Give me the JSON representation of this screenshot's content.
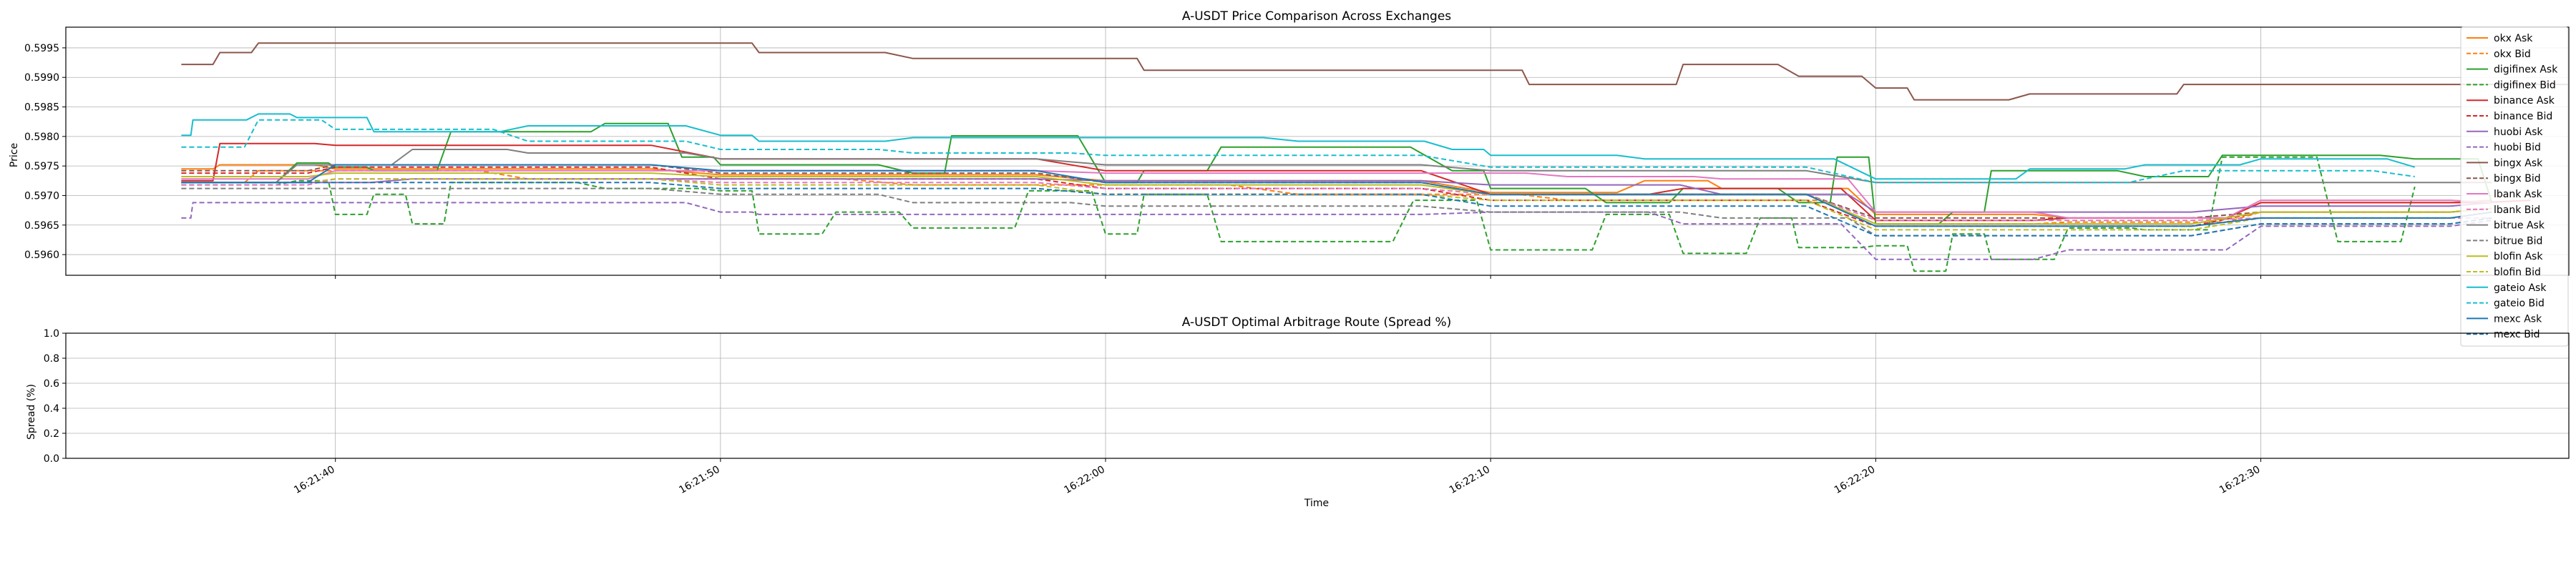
{
  "figure": {
    "xlabel": "Time",
    "x_ticks": [
      "16:21:40",
      "16:21:50",
      "16:22:00",
      "16:22:10",
      "16:22:20",
      "16:22:30"
    ]
  },
  "chart_data": [
    {
      "type": "line",
      "title": "A-USDT Price Comparison Across Exchanges",
      "ylabel": "Price",
      "xlabel": "",
      "xlim": [
        "16:21:33",
        "16:22:38"
      ],
      "ylim": [
        0.59565,
        0.59985
      ],
      "y_ticks": [
        "0.5960",
        "0.5965",
        "0.5970",
        "0.5975",
        "0.5980",
        "0.5985",
        "0.5990",
        "0.5995"
      ],
      "grid": true,
      "legend": "right",
      "series": [
        {
          "name": "okx Ask",
          "color": "#ff7f0e",
          "dash": false,
          "x": [
            "16:21:36",
            "16:21:37",
            "16:21:40",
            "16:21:50",
            "16:22:00",
            "16:22:10",
            "16:22:14",
            "16:22:16",
            "16:22:20",
            "16:22:25",
            "16:22:30",
            "16:22:36"
          ],
          "values": [
            0.59745,
            0.59752,
            0.59745,
            0.59735,
            0.59725,
            0.59705,
            0.59725,
            0.59712,
            0.59668,
            0.59662,
            0.59688,
            0.59692
          ]
        },
        {
          "name": "okx Bid",
          "color": "#ff7f0e",
          "dash": true,
          "x": [
            "16:21:36",
            "16:21:38",
            "16:21:45",
            "16:21:55",
            "16:22:05",
            "16:22:12",
            "16:22:20",
            "16:22:25",
            "16:22:30",
            "16:22:36"
          ],
          "values": [
            0.59722,
            0.59742,
            0.59728,
            0.59718,
            0.59702,
            0.59692,
            0.59652,
            0.59655,
            0.59672,
            0.59678
          ]
        },
        {
          "name": "digifinex Ask",
          "color": "#2ca02c",
          "dash": false,
          "x": [
            "16:21:36",
            "16:21:39",
            "16:21:40",
            "16:21:41",
            "16:21:43",
            "16:21:45",
            "16:21:47",
            "16:21:49",
            "16:21:50",
            "16:21:55",
            "16:21:56",
            "16:22:00",
            "16:22:01",
            "16:22:03",
            "16:22:09",
            "16:22:10",
            "16:22:13",
            "16:22:15",
            "16:22:18",
            "16:22:19",
            "16:22:20",
            "16:22:22",
            "16:22:23",
            "16:22:27",
            "16:22:29",
            "16:22:34",
            "16:22:36"
          ],
          "values": [
            0.59722,
            0.59755,
            0.59748,
            0.59742,
            0.59808,
            0.59808,
            0.59822,
            0.59765,
            0.59752,
            0.59738,
            0.59801,
            0.59722,
            0.59742,
            0.59782,
            0.59742,
            0.59712,
            0.59688,
            0.59712,
            0.59688,
            0.59765,
            0.59652,
            0.59672,
            0.59742,
            0.59732,
            0.59768,
            0.59762,
            0.59688
          ]
        },
        {
          "name": "digifinex Bid",
          "color": "#2ca02c",
          "dash": true,
          "x": [
            "16:21:36",
            "16:21:39",
            "16:21:40",
            "16:21:41",
            "16:21:42",
            "16:21:43",
            "16:21:47",
            "16:21:50",
            "16:21:51",
            "16:21:53",
            "16:21:55",
            "16:21:56",
            "16:21:58",
            "16:22:00",
            "16:22:01",
            "16:22:03",
            "16:22:05",
            "16:22:08",
            "16:22:10",
            "16:22:11",
            "16:22:13",
            "16:22:15",
            "16:22:17",
            "16:22:18",
            "16:22:20",
            "16:22:21",
            "16:22:22",
            "16:22:23",
            "16:22:25",
            "16:22:27",
            "16:22:29",
            "16:22:32",
            "16:22:34"
          ],
          "values": [
            0.59718,
            0.59725,
            0.59668,
            0.59702,
            0.59652,
            0.59722,
            0.59712,
            0.59708,
            0.59635,
            0.59672,
            0.59645,
            0.59645,
            0.59708,
            0.59635,
            0.59702,
            0.59622,
            0.59622,
            0.59692,
            0.59608,
            0.59608,
            0.59668,
            0.59602,
            0.59662,
            0.59612,
            0.59615,
            0.59572,
            0.59635,
            0.59592,
            0.59645,
            0.59642,
            0.59765,
            0.59622,
            0.59715
          ]
        },
        {
          "name": "binance Ask",
          "color": "#d62728",
          "dash": false,
          "x": [
            "16:21:36",
            "16:21:37",
            "16:21:40",
            "16:21:50",
            "16:22:00",
            "16:22:10",
            "16:22:15",
            "16:22:20",
            "16:22:25",
            "16:22:30",
            "16:22:37"
          ],
          "values": [
            0.59725,
            0.59788,
            0.59785,
            0.59762,
            0.59742,
            0.59702,
            0.59712,
            0.59658,
            0.59662,
            0.59688,
            0.59692
          ]
        },
        {
          "name": "binance Bid",
          "color": "#d62728",
          "dash": true,
          "x": [
            "16:21:36",
            "16:21:40",
            "16:21:50",
            "16:22:00",
            "16:22:10",
            "16:22:20",
            "16:22:30",
            "16:22:36"
          ],
          "values": [
            0.59738,
            0.59748,
            0.59728,
            0.59712,
            0.59692,
            0.59648,
            0.59672,
            0.59678
          ]
        },
        {
          "name": "huobi Ask",
          "color": "#9467bd",
          "dash": false,
          "x": [
            "16:21:36",
            "16:21:42",
            "16:21:50",
            "16:22:00",
            "16:22:10",
            "16:22:16",
            "16:22:20",
            "16:22:30",
            "16:22:36"
          ],
          "values": [
            0.59722,
            0.59728,
            0.59728,
            0.59725,
            0.59718,
            0.59702,
            0.59672,
            0.59682,
            0.59688
          ]
        },
        {
          "name": "huobi Bid",
          "color": "#9467bd",
          "dash": true,
          "x": [
            "16:21:36",
            "16:21:36.3",
            "16:21:37",
            "16:21:45",
            "16:21:50",
            "16:21:51",
            "16:22:00",
            "16:22:10",
            "16:22:15",
            "16:22:20",
            "16:22:25",
            "16:22:30",
            "16:22:36"
          ],
          "values": [
            0.59662,
            0.59688,
            0.59688,
            0.59688,
            0.59672,
            0.59668,
            0.59668,
            0.59672,
            0.59652,
            0.59592,
            0.59608,
            0.59648,
            0.59658
          ]
        },
        {
          "name": "bingx Ask",
          "color": "#8c564b",
          "dash": false,
          "x": [
            "16:21:36",
            "16:21:37",
            "16:21:38",
            "16:21:50",
            "16:21:51",
            "16:21:55",
            "16:22:00",
            "16:22:01",
            "16:22:05",
            "16:22:10",
            "16:22:11",
            "16:22:14",
            "16:22:15",
            "16:22:18",
            "16:22:20",
            "16:22:21",
            "16:22:24",
            "16:22:27",
            "16:22:28",
            "16:22:38"
          ],
          "values": [
            0.59922,
            0.59942,
            0.59958,
            0.59958,
            0.59942,
            0.59932,
            0.59932,
            0.59912,
            0.59912,
            0.59912,
            0.59888,
            0.59888,
            0.59922,
            0.59902,
            0.59882,
            0.59862,
            0.59872,
            0.59872,
            0.59888,
            0.59888
          ]
        },
        {
          "name": "bingx Bid",
          "color": "#8c564b",
          "dash": true,
          "x": [
            "16:21:36",
            "16:21:40",
            "16:21:50",
            "16:22:00",
            "16:22:10",
            "16:22:20",
            "16:22:30",
            "16:22:36"
          ],
          "values": [
            0.59742,
            0.59752,
            0.59738,
            0.59722,
            0.59702,
            0.59662,
            0.59672,
            0.59678
          ]
        },
        {
          "name": "lbank Ask",
          "color": "#e377c2",
          "dash": false,
          "x": [
            "16:21:36",
            "16:21:40",
            "16:21:50",
            "16:22:00",
            "16:22:06",
            "16:22:12",
            "16:22:16",
            "16:22:20",
            "16:22:25",
            "16:22:30",
            "16:22:36"
          ],
          "values": [
            0.59728,
            0.59742,
            0.59742,
            0.59738,
            0.59738,
            0.59732,
            0.59728,
            0.59672,
            0.59662,
            0.59692,
            0.59688
          ]
        },
        {
          "name": "lbank Bid",
          "color": "#e377c2",
          "dash": true,
          "x": [
            "16:21:36",
            "16:21:40",
            "16:21:50",
            "16:22:00",
            "16:22:10",
            "16:22:20",
            "16:22:30",
            "16:22:36"
          ],
          "values": [
            0.59718,
            0.59728,
            0.59722,
            0.59712,
            0.59702,
            0.59658,
            0.59662,
            0.59662
          ]
        },
        {
          "name": "bitrue Ask",
          "color": "#7f7f7f",
          "dash": false,
          "x": [
            "16:21:36",
            "16:21:39",
            "16:21:42",
            "16:21:45",
            "16:21:50",
            "16:22:00",
            "16:22:10",
            "16:22:20",
            "16:22:30",
            "16:22:36"
          ],
          "values": [
            0.59722,
            0.59752,
            0.59778,
            0.59772,
            0.59762,
            0.59752,
            0.59742,
            0.59722,
            0.59722,
            0.59722
          ]
        },
        {
          "name": "bitrue Bid",
          "color": "#7f7f7f",
          "dash": true,
          "x": [
            "16:21:36",
            "16:21:40",
            "16:21:50",
            "16:21:55",
            "16:22:00",
            "16:22:10",
            "16:22:16",
            "16:22:20",
            "16:22:30",
            "16:22:36"
          ],
          "values": [
            0.59712,
            0.59712,
            0.59702,
            0.59688,
            0.59682,
            0.59672,
            0.59662,
            0.59632,
            0.59652,
            0.59662
          ]
        },
        {
          "name": "blofin Ask",
          "color": "#bcbd22",
          "dash": false,
          "x": [
            "16:21:36",
            "16:21:40",
            "16:21:50",
            "16:22:00",
            "16:22:10",
            "16:22:20",
            "16:22:30",
            "16:22:36"
          ],
          "values": [
            0.59732,
            0.59738,
            0.59732,
            0.59718,
            0.59702,
            0.59652,
            0.59672,
            0.59678
          ]
        },
        {
          "name": "blofin Bid",
          "color": "#bcbd22",
          "dash": true,
          "x": [
            "16:21:36",
            "16:21:40",
            "16:21:50",
            "16:22:00",
            "16:22:10",
            "16:22:20",
            "16:22:30",
            "16:22:36"
          ],
          "values": [
            0.59722,
            0.59728,
            0.59718,
            0.59702,
            0.59692,
            0.59642,
            0.59662,
            0.59672
          ]
        },
        {
          "name": "gateio Ask",
          "color": "#17becf",
          "dash": false,
          "x": [
            "16:21:36",
            "16:21:36.3",
            "16:21:38",
            "16:21:39",
            "16:21:40",
            "16:21:41",
            "16:21:45",
            "16:21:50",
            "16:21:51",
            "16:21:55",
            "16:22:00",
            "16:22:05",
            "16:22:09",
            "16:22:10",
            "16:22:14",
            "16:22:20",
            "16:22:22",
            "16:22:24",
            "16:22:27",
            "16:22:30",
            "16:22:34"
          ],
          "values": [
            0.59802,
            0.59828,
            0.59838,
            0.59832,
            0.59832,
            0.59808,
            0.59818,
            0.59802,
            0.59792,
            0.59798,
            0.59798,
            0.59792,
            0.59778,
            0.59768,
            0.59762,
            0.59728,
            0.59728,
            0.59745,
            0.59752,
            0.59762,
            0.59748
          ]
        },
        {
          "name": "gateio Bid",
          "color": "#17becf",
          "dash": true,
          "x": [
            "16:21:36",
            "16:21:38",
            "16:21:40",
            "16:21:45",
            "16:21:50",
            "16:21:55",
            "16:22:00",
            "16:22:10",
            "16:22:20",
            "16:22:28",
            "16:22:34"
          ],
          "values": [
            0.59782,
            0.59828,
            0.59812,
            0.59792,
            0.59778,
            0.59772,
            0.59768,
            0.59748,
            0.59722,
            0.59742,
            0.59732
          ]
        },
        {
          "name": "mexc Ask",
          "color": "#1f77b4",
          "dash": false,
          "x": [
            "16:21:36",
            "16:21:40",
            "16:21:50",
            "16:22:00",
            "16:22:10",
            "16:22:20",
            "16:22:30",
            "16:22:36"
          ],
          "values": [
            0.59722,
            0.59752,
            0.59742,
            0.59722,
            0.59702,
            0.59648,
            0.59662,
            0.59672
          ]
        },
        {
          "name": "mexc Bid",
          "color": "#1f77b4",
          "dash": true,
          "x": [
            "16:21:36",
            "16:21:40",
            "16:21:50",
            "16:22:00",
            "16:22:10",
            "16:22:20",
            "16:22:30",
            "16:22:36"
          ],
          "values": [
            0.59722,
            0.59722,
            0.59712,
            0.59702,
            0.59682,
            0.59632,
            0.59652,
            0.59662
          ]
        }
      ]
    },
    {
      "type": "line",
      "title": "A-USDT Optimal Arbitrage Route (Spread %)",
      "ylabel": "Spread (%)",
      "xlabel": "Time",
      "xlim": [
        "16:21:33",
        "16:22:38"
      ],
      "ylim": [
        0.0,
        1.0
      ],
      "y_ticks": [
        "0.0",
        "0.2",
        "0.4",
        "0.6",
        "0.8",
        "1.0"
      ],
      "grid": true,
      "series": []
    }
  ]
}
